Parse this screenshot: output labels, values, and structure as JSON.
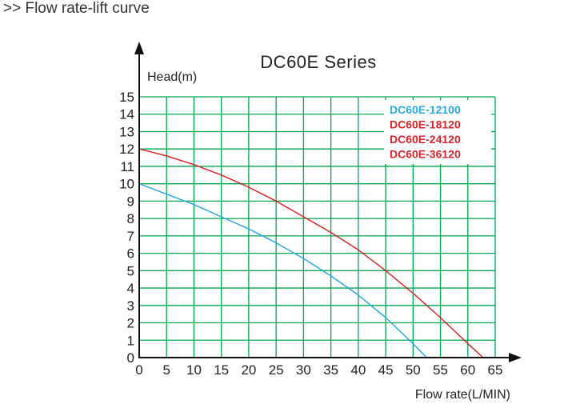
{
  "header": {
    "text": ">> Flow rate-lift curve"
  },
  "chart_data": {
    "type": "line",
    "title": "DC60E Series",
    "xlabel": "Flow rate(L/MIN)",
    "ylabel": "Head(m)",
    "xlim": [
      0,
      65
    ],
    "ylim": [
      0,
      15
    ],
    "x_ticks": [
      "0",
      "5",
      "10",
      "15",
      "20",
      "25",
      "30",
      "35",
      "40",
      "45",
      "50",
      "55",
      "60",
      "65"
    ],
    "y_ticks": [
      "0",
      "1",
      "2",
      "3",
      "4",
      "5",
      "6",
      "7",
      "8",
      "9",
      "10",
      "11",
      "12",
      "13",
      "14",
      "15"
    ],
    "grid": true,
    "grid_color": "#00a651",
    "legend_position": "top-right",
    "legend": [
      {
        "name": "DC60E-12100",
        "color": "#29abe2"
      },
      {
        "name": "DC60E-18120",
        "color": "#d7262b"
      },
      {
        "name": "DC60E-24120",
        "color": "#d7262b"
      },
      {
        "name": "DC60E-36120",
        "color": "#d7262b"
      }
    ],
    "series": [
      {
        "color": "#29abe2",
        "x": [
          0,
          5,
          10,
          15,
          20,
          25,
          30,
          35,
          40,
          45,
          50,
          52.5
        ],
        "y": [
          10,
          9.4,
          8.8,
          8.1,
          7.4,
          6.6,
          5.7,
          4.7,
          3.6,
          2.3,
          0.8,
          0
        ]
      },
      {
        "color": "#d7262b",
        "x": [
          0,
          5,
          10,
          15,
          20,
          25,
          30,
          35,
          40,
          45,
          50,
          55,
          60,
          62.8
        ],
        "y": [
          12,
          11.6,
          11.1,
          10.5,
          9.8,
          9.0,
          8.1,
          7.2,
          6.2,
          5.0,
          3.7,
          2.3,
          0.8,
          0
        ]
      }
    ]
  }
}
